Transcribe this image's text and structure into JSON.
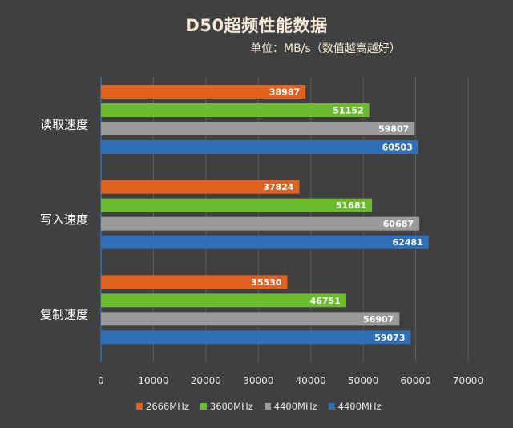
{
  "title": "D50超频性能数据",
  "subtitle": "单位：MB/s（数值越高越好）",
  "colors": {
    "background": "#404040",
    "grid": "#5e5e5e",
    "axis": "#2f6fb3",
    "title_text": "#f4ead7",
    "label_text": "#ffffff",
    "tick_text": "#e6e6e6"
  },
  "chart_data": {
    "type": "bar",
    "orientation": "horizontal",
    "title": "D50超频性能数据",
    "subtitle": "单位：MB/s（数值越高越好）",
    "categories": [
      "读取速度",
      "写入速度",
      "复制速度"
    ],
    "xlim": [
      0,
      70000
    ],
    "x_ticks": [
      0,
      10000,
      20000,
      30000,
      40000,
      50000,
      60000,
      70000
    ],
    "x_tick_labels": [
      "0",
      "10000",
      "20000",
      "30000",
      "40000",
      "50000",
      "60000",
      "70000"
    ],
    "grid": true,
    "legend_position": "bottom",
    "series": [
      {
        "name": "2666MHz",
        "color": "#e0621e",
        "values": [
          38987,
          37824,
          35530
        ]
      },
      {
        "name": "3600MHz",
        "color": "#6bbb2e",
        "values": [
          51152,
          51681,
          46751
        ]
      },
      {
        "name": "4400MHz",
        "color": "#9a9a9a",
        "values": [
          59807,
          60687,
          56907
        ]
      },
      {
        "name": "4400MHz",
        "color": "#2e6fb8",
        "values": [
          60503,
          62481,
          59073
        ]
      }
    ]
  }
}
